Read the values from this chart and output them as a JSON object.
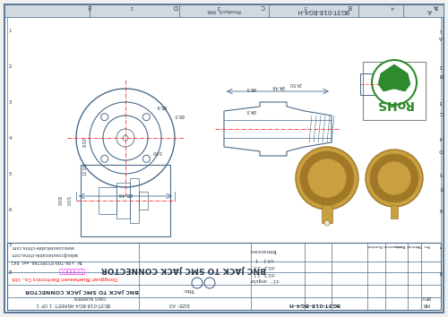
{
  "bg_color": "#f0f0f0",
  "border_color": "#5a7a9a",
  "line_color": "#4a6a8a",
  "drawing_bg": "#ffffff",
  "title": "BNC JACK TO SMC JACK CONNECTOR",
  "part_number": "BG3T-018-BG4-H",
  "product_number": "BG3T-018-BG4-H",
  "company": "Dongguan Blueheaven Electronics Co., Ltd.",
  "company_cn": "东莞市百货商行",
  "website": "www.coaxialcable-china.com",
  "tolerance_note": "±0.1  1",
  "tolerance_note2": "±0.2  2.1",
  "tolerance_note3": "±0.3  2.1",
  "tolerance_note4": "±1°  angular",
  "rohs_green": "#2d8a2d",
  "rohs_leaf_color": "#3aaa3a",
  "header_bg": "#d0d8e0",
  "table_line_color": "#888888",
  "pink_text_color": "#ff00ff",
  "red_text_color": "#ff0000",
  "dark_line": "#2a3a4a",
  "gray_bg": "#e8e8e8",
  "copper_color": "#c8a040",
  "copper_dark": "#a07828"
}
